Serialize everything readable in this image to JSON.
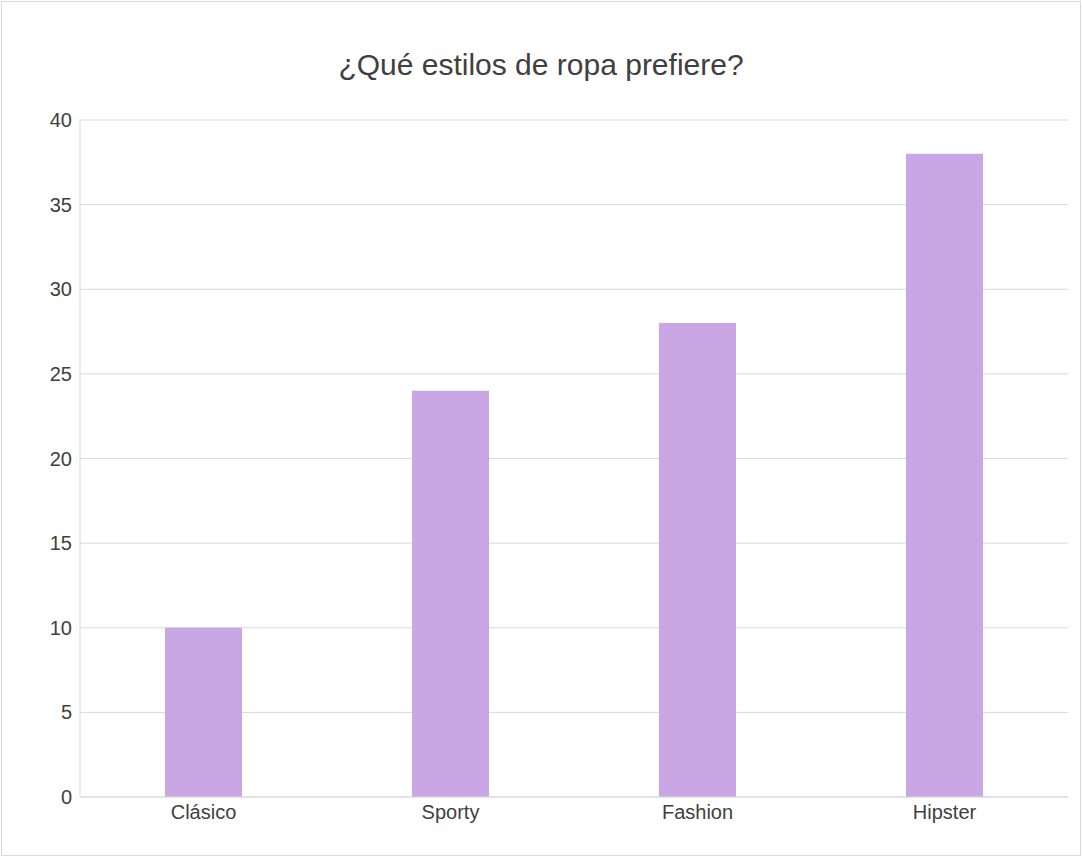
{
  "chart_data": {
    "type": "bar",
    "title": "¿Qué estilos de ropa prefiere?",
    "categories": [
      "Clásico",
      "Sporty",
      "Fashion",
      "Hipster"
    ],
    "values": [
      10,
      24,
      28,
      38
    ],
    "color": "#c9a7e4",
    "ylim": [
      0,
      40
    ],
    "yticks": [
      0,
      5,
      10,
      15,
      20,
      25,
      30,
      35,
      40
    ],
    "grid": true
  }
}
